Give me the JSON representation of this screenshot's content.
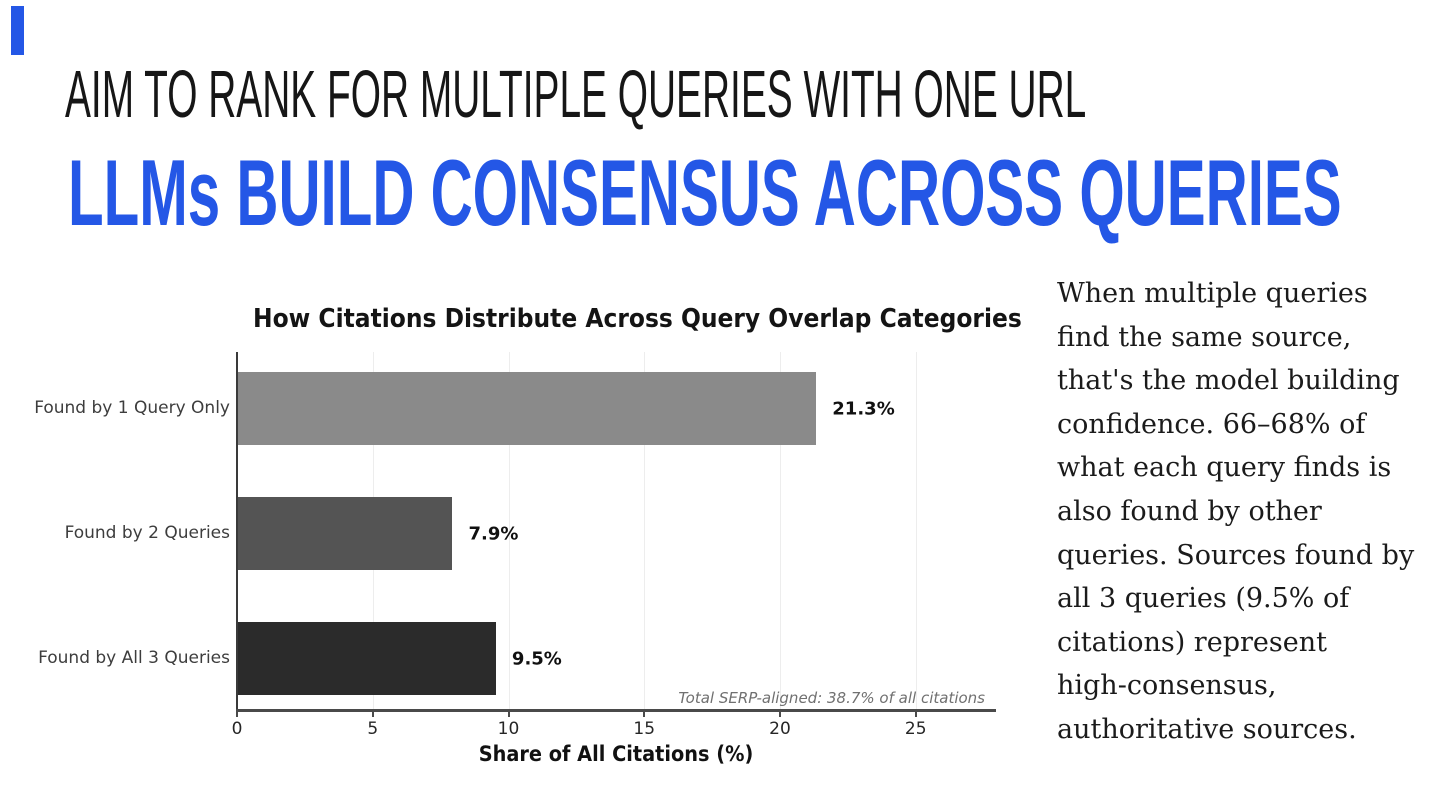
{
  "slide": {
    "kicker": "AIM TO RANK FOR MULTIPLE QUERIES WITH ONE URL",
    "headline": "LLMs BUILD CONSENSUS ACROSS QUERIES",
    "accent_color": "#2457e6",
    "kicker_color": "#161616",
    "background_color": "#ffffff"
  },
  "chart_data": {
    "type": "bar",
    "orientation": "horizontal",
    "title": "How Citations Distribute Across Query Overlap Categories",
    "categories": [
      "Found by 1 Query Only",
      "Found by 2 Queries",
      "Found by All 3 Queries"
    ],
    "values": [
      21.3,
      7.9,
      9.5
    ],
    "value_labels": [
      "21.3%",
      "7.9%",
      "9.5%"
    ],
    "bar_colors": [
      "#8a8a8a",
      "#545454",
      "#2b2b2b"
    ],
    "xlabel": "Share of All Citations (%)",
    "ylabel": "",
    "xticks": [
      0,
      5,
      10,
      15,
      20,
      25
    ],
    "xlim": [
      0,
      28
    ],
    "grid": true,
    "legend": false,
    "annotation": "Total SERP-aligned: 38.7% of all citations"
  },
  "sidebar_text": {
    "lines": [
      "When multiple queries",
      "find the same source,",
      "that's the model building",
      "confidence. 66–68% of",
      "what each query finds is",
      "also found by other",
      "queries. Sources found by",
      "all 3 queries (9.5% of",
      "citations) represent",
      "high-consensus,",
      "authoritative sources."
    ]
  }
}
